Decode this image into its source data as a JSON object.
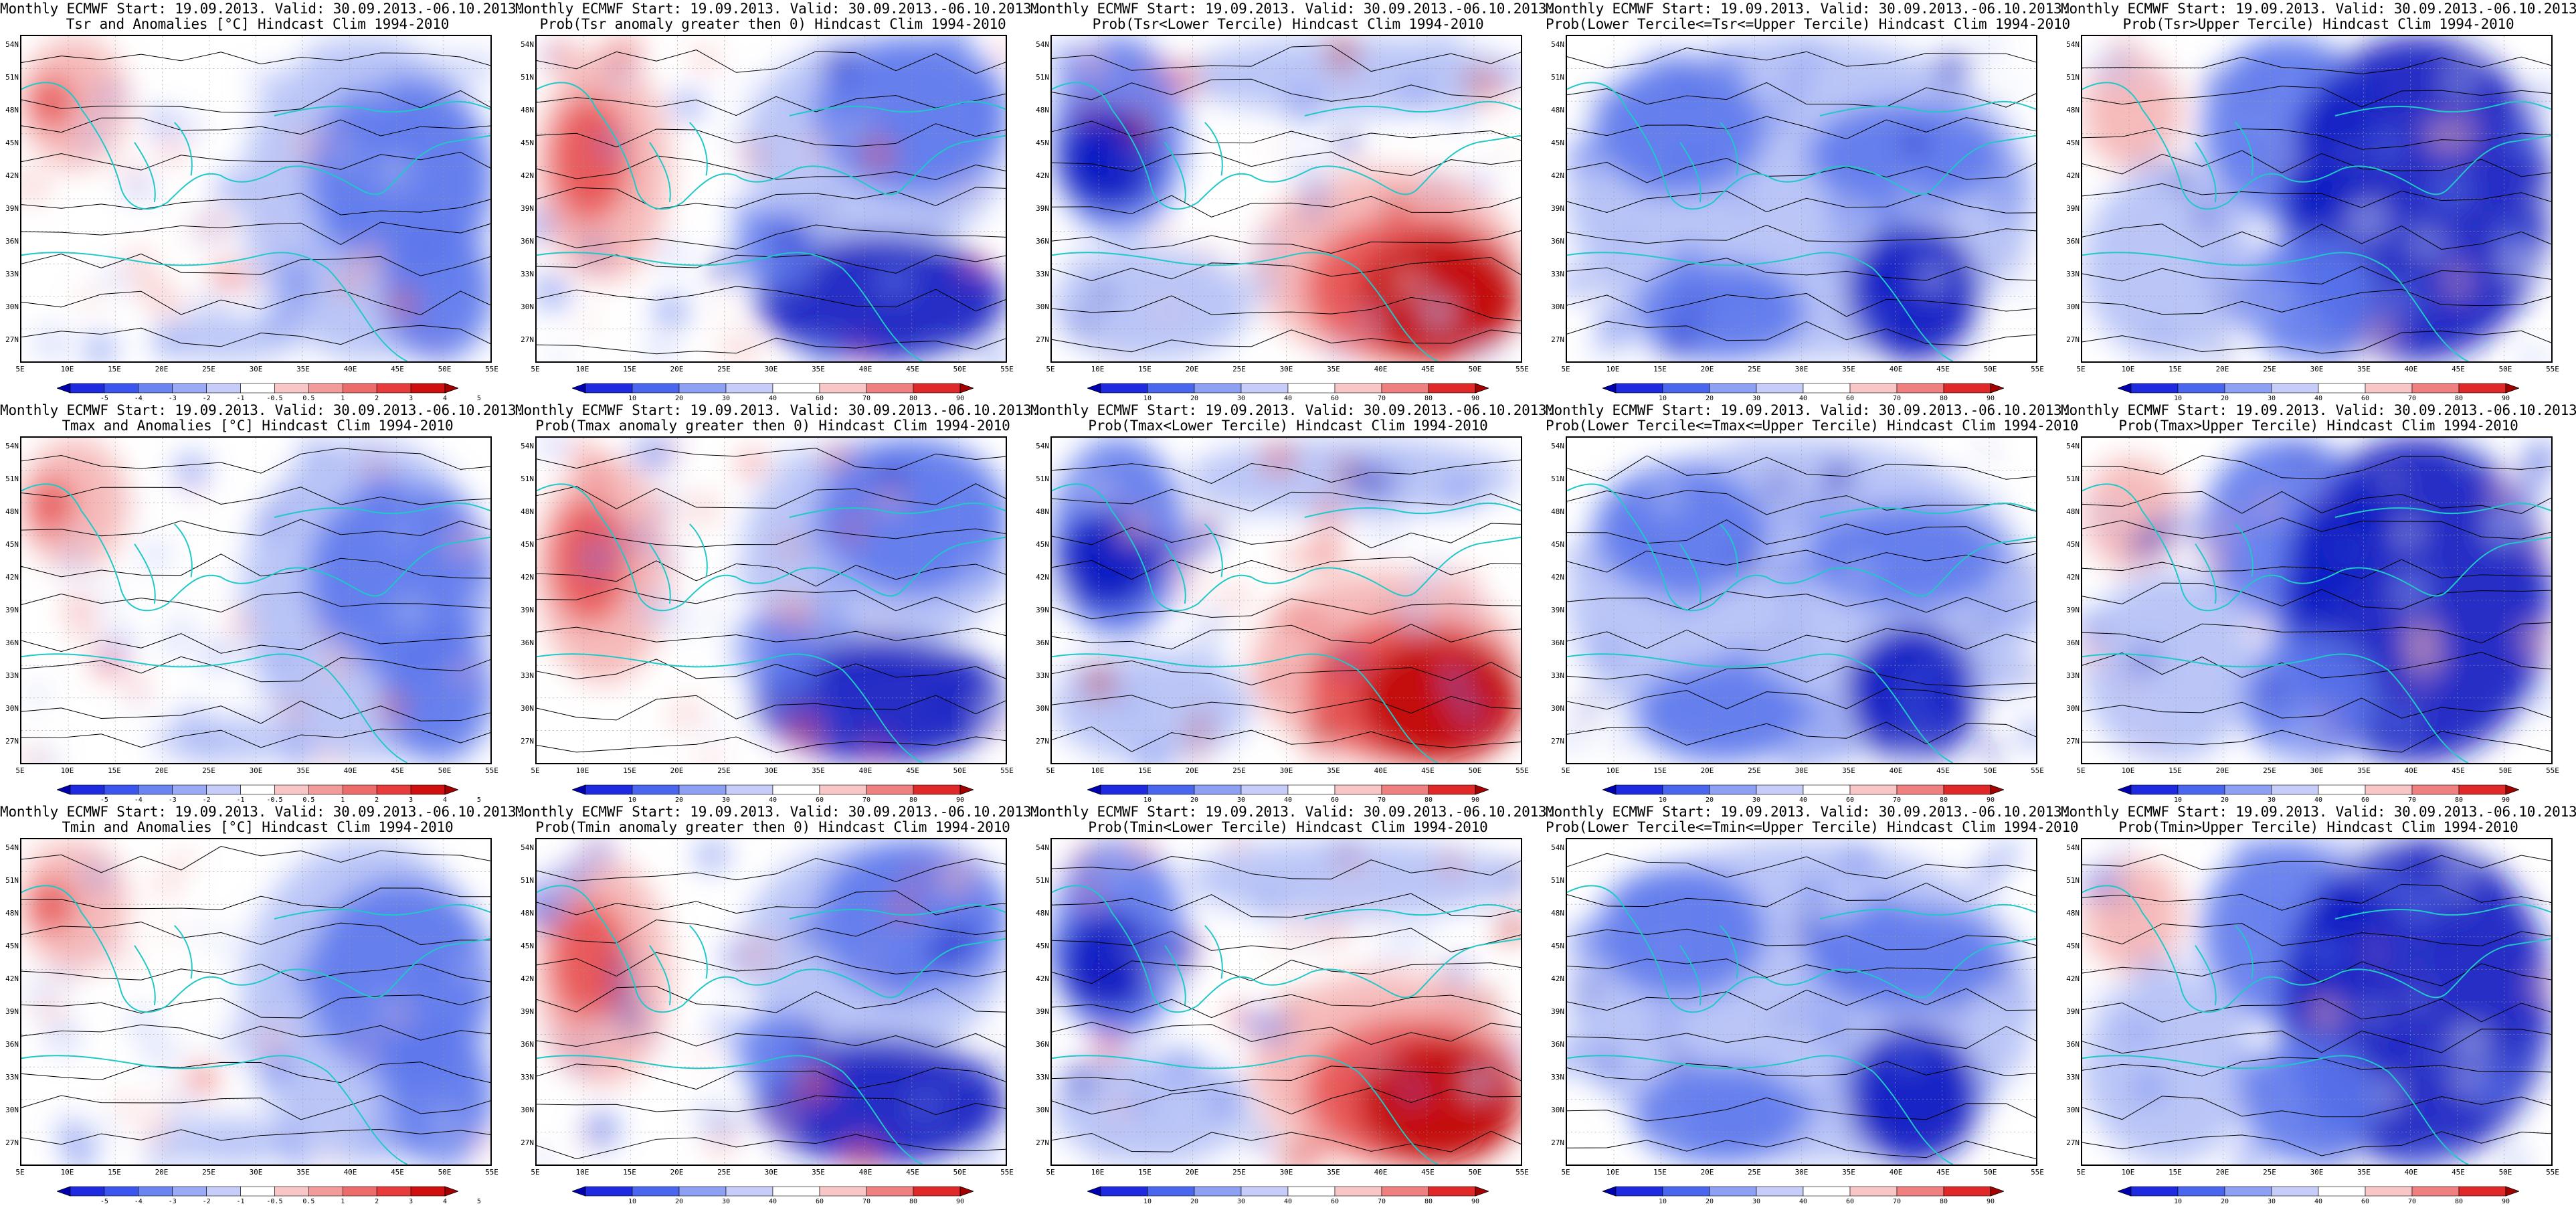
{
  "rows": [
    {
      "variable": "Tsr",
      "panels": [
        {
          "line1": "Monthly ECMWF Start: 19.09.2013. Valid: 30.09.2013.-06.10.2013.",
          "line2": "Tsr and Anomalies [°C] Hindcast Clim 1994-2010",
          "scale": "anomaly",
          "palette_bias": "cool-east"
        },
        {
          "line1": "Monthly ECMWF Start: 19.09.2013. Valid: 30.09.2013.-06.10.2013.",
          "line2": "Prob(Tsr anomaly greater then 0) Hindcast Clim 1994-2010",
          "scale": "probability",
          "palette_bias": "blue-east"
        },
        {
          "line1": "Monthly ECMWF Start: 19.09.2013. Valid: 30.09.2013.-06.10.2013.",
          "line2": "Prob(Tsr<Lower Tercile) Hindcast Clim 1994-2010",
          "scale": "probability",
          "palette_bias": "red-southeast"
        },
        {
          "line1": "Monthly ECMWF Start: 19.09.2013. Valid: 30.09.2013.-06.10.2013.",
          "line2": "Prob(Lower Tercile<=Tsr<=Upper Tercile) Hindcast Clim 1994-2010",
          "scale": "probability",
          "palette_bias": "blue-mixed"
        },
        {
          "line1": "Monthly ECMWF Start: 19.09.2013. Valid: 30.09.2013.-06.10.2013.",
          "line2": "Prob(Tsr>Upper Tercile) Hindcast Clim 1994-2010",
          "scale": "probability",
          "palette_bias": "deep-blue-east"
        }
      ]
    },
    {
      "variable": "Tmax",
      "panels": [
        {
          "line1": "Monthly ECMWF Start: 19.09.2013. Valid: 30.09.2013.-06.10.2013.",
          "line2": "Tmax and Anomalies [°C] Hindcast Clim 1994-2010",
          "scale": "anomaly",
          "palette_bias": "cool-east"
        },
        {
          "line1": "Monthly ECMWF Start: 19.09.2013. Valid: 30.09.2013.-06.10.2013.",
          "line2": "Prob(Tmax anomaly greater then 0) Hindcast Clim 1994-2010",
          "scale": "probability",
          "palette_bias": "blue-east"
        },
        {
          "line1": "Monthly ECMWF Start: 19.09.2013. Valid: 30.09.2013.-06.10.2013.",
          "line2": "Prob(Tmax<Lower Tercile) Hindcast Clim 1994-2010",
          "scale": "probability",
          "palette_bias": "red-southeast"
        },
        {
          "line1": "Monthly ECMWF Start: 19.09.2013. Valid: 30.09.2013.-06.10.2013.",
          "line2": "Prob(Lower Tercile<=Tmax<=Upper Tercile) Hindcast Clim 1994-2010",
          "scale": "probability",
          "palette_bias": "blue-mixed"
        },
        {
          "line1": "Monthly ECMWF Start: 19.09.2013. Valid: 30.09.2013.-06.10.2013.",
          "line2": "Prob(Tmax>Upper Tercile) Hindcast Clim 1994-2010",
          "scale": "probability",
          "palette_bias": "deep-blue-east"
        }
      ]
    },
    {
      "variable": "Tmin",
      "panels": [
        {
          "line1": "Monthly ECMWF Start: 19.09.2013. Valid: 30.09.2013.-06.10.2013.",
          "line2": "Tmin and Anomalies [°C] Hindcast Clim 1994-2010",
          "scale": "anomaly",
          "palette_bias": "cool-east"
        },
        {
          "line1": "Monthly ECMWF Start: 19.09.2013. Valid: 30.09.2013.-06.10.2013.",
          "line2": "Prob(Tmin anomaly greater then 0) Hindcast Clim 1994-2010",
          "scale": "probability",
          "palette_bias": "blue-east"
        },
        {
          "line1": "Monthly ECMWF Start: 19.09.2013. Valid: 30.09.2013.-06.10.2013.",
          "line2": "Prob(Tmin<Lower Tercile) Hindcast Clim 1994-2010",
          "scale": "probability",
          "palette_bias": "red-southeast"
        },
        {
          "line1": "Monthly ECMWF Start: 19.09.2013. Valid: 30.09.2013.-06.10.2013.",
          "line2": "Prob(Lower Tercile<=Tmin<=Upper Tercile) Hindcast Clim 1994-2010",
          "scale": "probability",
          "palette_bias": "blue-mixed"
        },
        {
          "line1": "Monthly ECMWF Start: 19.09.2013. Valid: 30.09.2013.-06.10.2013.",
          "line2": "Prob(Tmin>Upper Tercile) Hindcast Clim 1994-2010",
          "scale": "probability",
          "palette_bias": "deep-blue-east"
        }
      ]
    }
  ],
  "lat_labels": [
    "54N",
    "51N",
    "48N",
    "45N",
    "42N",
    "39N",
    "36N",
    "33N",
    "30N",
    "27N"
  ],
  "lon_labels": [
    "5E",
    "10E",
    "15E",
    "20E",
    "25E",
    "30E",
    "35E",
    "40E",
    "45E",
    "50E",
    "55E"
  ],
  "scales": {
    "anomaly": {
      "labels": [
        "-5",
        "-4",
        "-3",
        "-2",
        "-1",
        "-0.5",
        "0.5",
        "1",
        "2",
        "3",
        "4",
        "5"
      ],
      "colors": [
        "#0000b0",
        "#1e2adf",
        "#3b55ef",
        "#6b84f2",
        "#9aaaf5",
        "#c6cdf8",
        "#ffffff",
        "#f8c6c6",
        "#f39a9a",
        "#ee6b6b",
        "#e83b3b",
        "#d00f0f",
        "#a30000"
      ]
    },
    "probability": {
      "labels": [
        "10",
        "20",
        "30",
        "40",
        "60",
        "70",
        "80",
        "90"
      ],
      "colors": [
        "#0000b0",
        "#1e2adf",
        "#4a66ee",
        "#8ea0f4",
        "#c6cdf8",
        "#ffffff",
        "#f8c6c6",
        "#f08080",
        "#e02828",
        "#a30000"
      ]
    }
  },
  "colors": {
    "coastline": "#20c8c8",
    "contour": "#000000",
    "deep_blue": "#0a14c0",
    "mid_blue": "#5c78ec",
    "light_blue": "#b4c0f6",
    "light_red": "#f5b4b4",
    "mid_red": "#e85050",
    "deep_red": "#c00000"
  }
}
